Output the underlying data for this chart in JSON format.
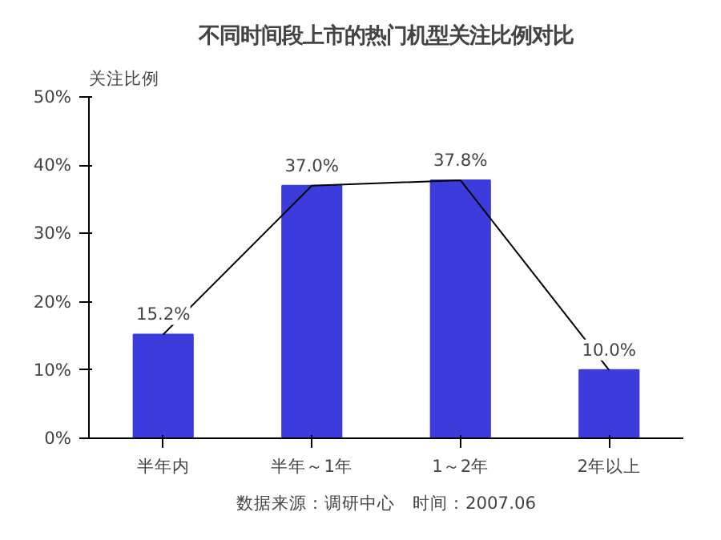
{
  "chart_data": {
    "type": "bar",
    "title": "不同时间段上市的热门机型关注比例对比",
    "ylabel": "关注比例",
    "categories": [
      "半年内",
      "半年～1年",
      "1～2年",
      "2年以上"
    ],
    "series": [
      {
        "color": "#3c3cdc",
        "values": [
          15.2,
          37.0,
          37.8,
          10.0
        ]
      },
      {
        "type": "line",
        "color": "#000000",
        "values": [
          15.2,
          37.0,
          37.8,
          10.0
        ]
      }
    ],
    "ylim": [
      0,
      50
    ],
    "yticks": [
      {
        "value": 0,
        "label": "0%"
      },
      {
        "value": 10,
        "label": "10%"
      },
      {
        "value": 20,
        "label": "20%"
      },
      {
        "value": 30,
        "label": "30%"
      },
      {
        "value": 40,
        "label": "40%"
      },
      {
        "value": 50,
        "label": "50%"
      }
    ],
    "value_labels": [
      "15.2%",
      "37.0%",
      "37.8%",
      "10.0%"
    ],
    "annotations": [
      "数据来源：调研中心　时间：2007.06"
    ],
    "grid": false,
    "marker": "none",
    "line_style": "solid"
  }
}
